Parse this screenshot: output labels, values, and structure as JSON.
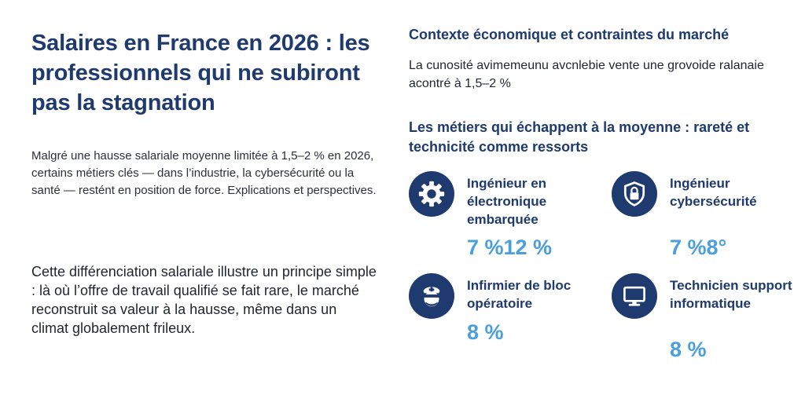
{
  "article": {
    "title": "Salaires en France en 2026 : les professionnels qui ne subiront pas la stagnation",
    "intro": "Malgré une hausse salariale moyenne limitée à 1,5–2 % en 2026, certains métiers clés — dans l’industrie, la cybersécurité ou la santé — restént en position de force. Explications et perspectives.",
    "conclusion": "Cette différenciation salariale illustre un principe simple : là où l’offre de travail qualifié se fait rare, le marché reconstruit sa valeur à la hausse, même dans un climat globalement frileux."
  },
  "context": {
    "title": "Contexte économique et contraintes du marché",
    "text": "La cunosité avimemeunu avcnlebie vente une grovoide ralanaie acontré à 1,5–2 %"
  },
  "jobs": {
    "title": "Les métiers qui échappent à la moyenne : rareté et technicité comme ressorts",
    "items": [
      {
        "name": "Ingénieur en électronique embarquée",
        "value": "7 %12 %",
        "icon": "gear-icon"
      },
      {
        "name": "Ingénieur cybersécurité",
        "value": "7 %8°",
        "icon": "shield-lock-icon"
      },
      {
        "name": "Infirmier de bloc opératoire",
        "value": "8 %",
        "icon": "nurse-icon"
      },
      {
        "name": "Technicien support informatique",
        "value": "8 %",
        "icon": "monitor-icon"
      }
    ]
  },
  "colors": {
    "navy": "#1e3a6e",
    "accent": "#4a9fdc"
  }
}
